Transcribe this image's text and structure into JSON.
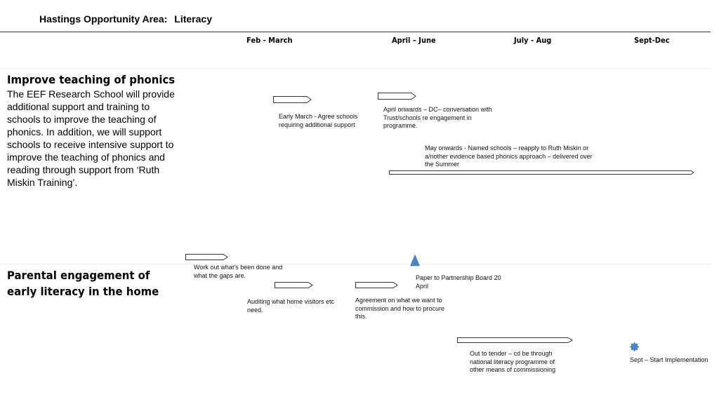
{
  "header": {
    "area": "Hastings Opportunity Area:",
    "topic": "Literacy"
  },
  "months": [
    "Feb - March",
    "April – June",
    "July - Aug",
    "Sept-Dec"
  ],
  "sections": [
    {
      "heading": "Improve teaching of phonics",
      "description": "The EEF Research School will provide additional support and training to schools to improve the teaching of phonics. In addition, we will support schools to receive intensive support to improve the teaching of phonics and reading through support from ‘Ruth Miskin Training’.",
      "notes": [
        "Early March - Agree schools requiring additional support",
        "April onwards – DC– conversation with Trust/schools re engagement in programme.",
        "May onwards -  Named schools – reapply to Ruth Miskin or a/nother evidence based phonics approach – delivered over the Summer"
      ]
    },
    {
      "heading": "Parental engagement of early literacy in the home",
      "notes": [
        "Work out what’s been done and what the gaps are.",
        "Auditing what home visitors etc need.",
        "Agreement on what we want to commission and how to procure this.",
        "Paper to Partnership Board 20 April",
        "Out to tender – cd be through national literacy programme of other means of commissioning",
        "Sept – Start Implementation"
      ]
    }
  ],
  "colors": {
    "milestone": "#4a86c5",
    "arrow_stroke": "#333333"
  },
  "icons": {
    "milestone_triangle": "triangle-icon",
    "milestone_star": "star-burst-icon"
  }
}
